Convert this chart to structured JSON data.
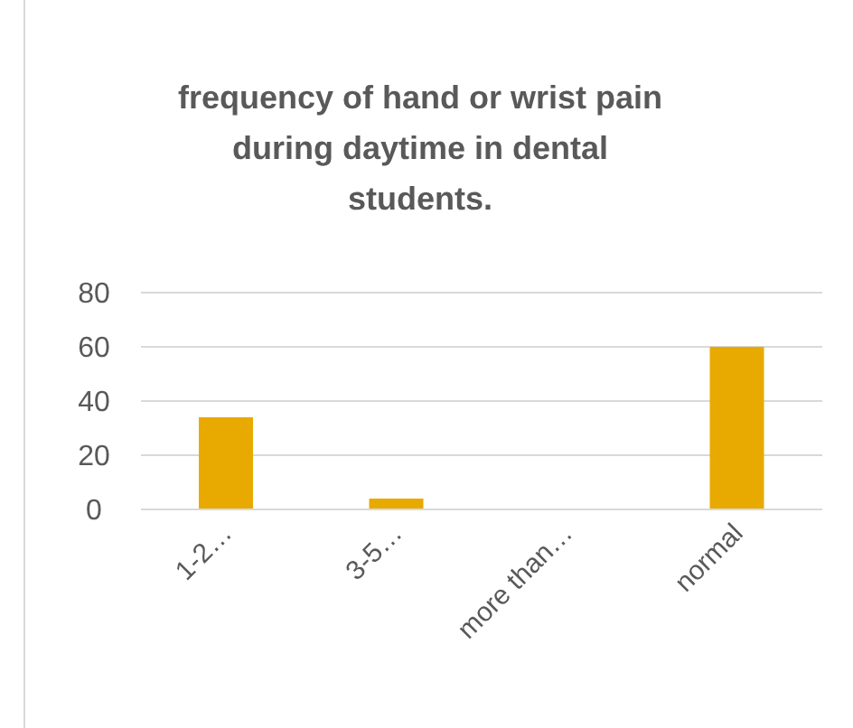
{
  "chart_data": {
    "type": "bar",
    "title": "frequency of hand or wrist pain during daytime in dental students.",
    "categories": [
      "1-2…",
      "3-5…",
      "more than…",
      "normal"
    ],
    "values": [
      34,
      4,
      0,
      60
    ],
    "color": "#e8aa00",
    "ylim": [
      0,
      80
    ],
    "yticks": [
      0,
      20,
      40,
      60,
      80
    ],
    "grid": "y"
  }
}
